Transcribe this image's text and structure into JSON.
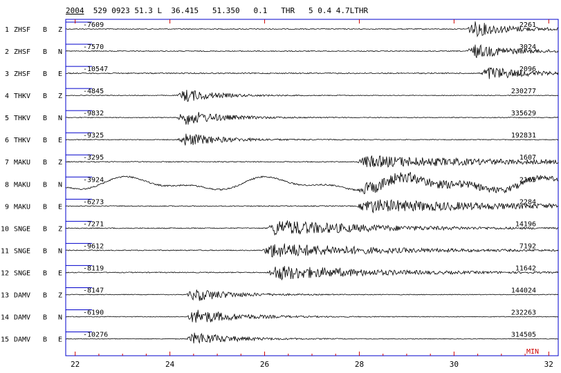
{
  "header": {
    "year": "2004",
    "info": "  529 0923 51.3 L  36.415   51.350   0.1   THR   5 0.4 4.7LTHR"
  },
  "x_axis": {
    "ticks": [
      "22",
      "24",
      "26",
      "28",
      "30",
      "32"
    ],
    "unit": "MIN"
  },
  "colors": {
    "frame": "#0000cc",
    "trace": "#000000",
    "unit": "#cc0000",
    "tick": "#cc0000"
  },
  "traces": [
    {
      "index": "1",
      "station": "ZHSF",
      "band": "B",
      "comp": "Z",
      "min": "-7609",
      "max": "2261",
      "events": [
        [
          30.3,
          1.0,
          0.35
        ]
      ],
      "bg": 0.05
    },
    {
      "index": "2",
      "station": "ZHSF",
      "band": "B",
      "comp": "N",
      "min": "-7570",
      "max": "3024",
      "events": [
        [
          30.3,
          0.9,
          0.4
        ]
      ],
      "bg": 0.05
    },
    {
      "index": "3",
      "station": "ZHSF",
      "band": "B",
      "comp": "E",
      "min": "-10547",
      "max": "2096",
      "events": [
        [
          30.6,
          0.9,
          0.35
        ]
      ],
      "bg": 0.06
    },
    {
      "index": "4",
      "station": "THKV",
      "band": "B",
      "comp": "Z",
      "min": "-4845",
      "max": "230277",
      "events": [
        [
          24.2,
          0.9,
          0.3
        ]
      ],
      "bg": 0.04
    },
    {
      "index": "5",
      "station": "THKV",
      "band": "B",
      "comp": "N",
      "min": "-9832",
      "max": "335629",
      "events": [
        [
          24.2,
          1.0,
          0.35
        ]
      ],
      "bg": 0.04
    },
    {
      "index": "6",
      "station": "THKV",
      "band": "B",
      "comp": "E",
      "min": "-9325",
      "max": "192831",
      "events": [
        [
          24.2,
          0.9,
          0.35
        ]
      ],
      "bg": 0.04
    },
    {
      "index": "7",
      "station": "MAKU",
      "band": "B",
      "comp": "Z",
      "min": "-3295",
      "max": "1607",
      "events": [
        [
          28.0,
          0.7,
          1.4
        ]
      ],
      "bg": 0.05
    },
    {
      "index": "8",
      "station": "MAKU",
      "band": "B",
      "comp": "N",
      "min": "-3924",
      "max": "2165",
      "events": [
        [
          28.0,
          0.7,
          1.4
        ]
      ],
      "bg": 0.08
    },
    {
      "index": "9",
      "station": "MAKU",
      "band": "B",
      "comp": "E",
      "min": "-6273",
      "max": "2284",
      "events": [
        [
          28.0,
          0.8,
          1.4
        ]
      ],
      "bg": 0.05
    },
    {
      "index": "10",
      "station": "SNGE",
      "band": "B",
      "comp": "Z",
      "min": "-7271",
      "max": "14196",
      "events": [
        [
          26.1,
          1.0,
          0.9
        ]
      ],
      "bg": 0.05
    },
    {
      "index": "11",
      "station": "SNGE",
      "band": "B",
      "comp": "N",
      "min": "-9612",
      "max": "7192",
      "events": [
        [
          26.0,
          0.9,
          1.0
        ]
      ],
      "bg": 0.05
    },
    {
      "index": "12",
      "station": "SNGE",
      "band": "B",
      "comp": "E",
      "min": "-8119",
      "max": "11642",
      "events": [
        [
          26.1,
          0.9,
          0.9
        ]
      ],
      "bg": 0.05
    },
    {
      "index": "13",
      "station": "DAMV",
      "band": "B",
      "comp": "Z",
      "min": "-8147",
      "max": "144024",
      "events": [
        [
          24.4,
          0.9,
          0.35
        ]
      ],
      "bg": 0.04
    },
    {
      "index": "14",
      "station": "DAMV",
      "band": "B",
      "comp": "N",
      "min": "-6190",
      "max": "232263",
      "events": [
        [
          24.4,
          1.0,
          0.4
        ]
      ],
      "bg": 0.04
    },
    {
      "index": "15",
      "station": "DAMV",
      "band": "B",
      "comp": "E",
      "min": "-10276",
      "max": "314505",
      "events": [
        [
          24.4,
          0.9,
          0.35
        ]
      ],
      "bg": 0.04
    }
  ]
}
